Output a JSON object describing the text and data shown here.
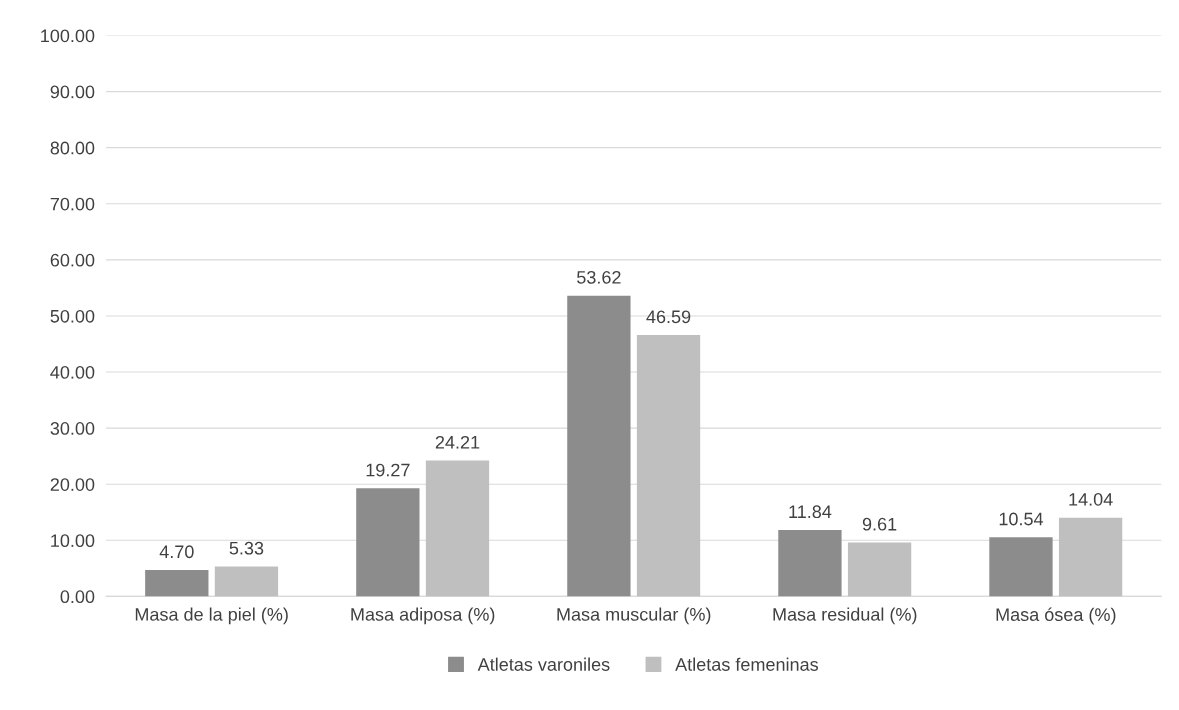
{
  "chart_data": {
    "type": "bar",
    "categories": [
      "Masa de la piel (%)",
      "Masa adiposa (%)",
      "Masa muscular (%)",
      "Masa residual (%)",
      "Masa ósea (%)"
    ],
    "series": [
      {
        "name": "Atletas varoniles",
        "color": "#8c8c8c",
        "values": [
          4.7,
          19.27,
          53.62,
          11.84,
          10.54
        ],
        "value_labels": [
          "4.70",
          "19.27",
          "53.62",
          "11.84",
          "10.54"
        ]
      },
      {
        "name": "Atletas femeninas",
        "color": "#bfbfbf",
        "values": [
          5.33,
          24.21,
          46.59,
          9.61,
          14.04
        ],
        "value_labels": [
          "5.33",
          "24.21",
          "46.59",
          "9.61",
          "14.04"
        ]
      }
    ],
    "ylim": [
      0,
      100
    ],
    "yticks": [
      {
        "value": 0,
        "label": "0.00"
      },
      {
        "value": 10,
        "label": "10.00"
      },
      {
        "value": 20,
        "label": "20.00"
      },
      {
        "value": 30,
        "label": "30.00"
      },
      {
        "value": 40,
        "label": "40.00"
      },
      {
        "value": 50,
        "label": "50.00"
      },
      {
        "value": 60,
        "label": "60.00"
      },
      {
        "value": 70,
        "label": "70.00"
      },
      {
        "value": 80,
        "label": "80.00"
      },
      {
        "value": 90,
        "label": "90.00"
      },
      {
        "value": 100,
        "label": "100.00"
      }
    ],
    "grid": "y",
    "legend": "bottom"
  }
}
